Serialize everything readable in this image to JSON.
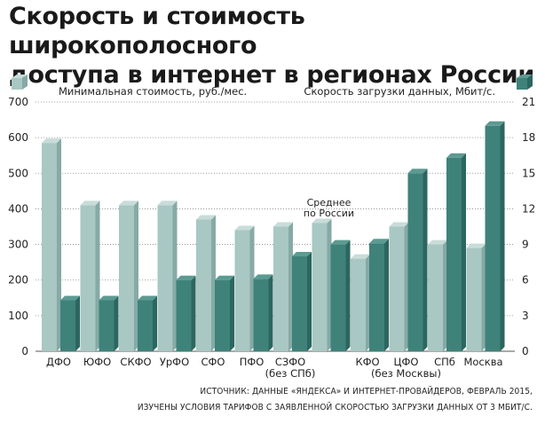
{
  "title_line1": "Скорость и стоимость широкополосного",
  "title_line2": "доступа в интернет в регионах России",
  "colors": {
    "cost": "#a9c7c3",
    "cost_side": "#86aaa5",
    "cost_top": "#c8dcd9",
    "speed": "#3f827a",
    "speed_side": "#2c6660",
    "speed_top": "#5c9a92",
    "axis_text": "#222222"
  },
  "chart_data": {
    "type": "bar",
    "left_axis": {
      "label": "Минимальная стоимость, руб./мес.",
      "ticks": [
        "0",
        "100",
        "200",
        "300",
        "400",
        "500",
        "600",
        "700"
      ],
      "range": [
        0,
        700
      ]
    },
    "right_axis": {
      "label": "Скорость загрузки данных, Мбит/с.",
      "ticks": [
        "0",
        "3",
        "6",
        "9",
        "12",
        "15",
        "18",
        "21"
      ],
      "range": [
        0,
        21
      ]
    },
    "categories": [
      "ДФО",
      "ЮФО",
      "СКФО",
      "УрФО",
      "СФО",
      "ПФО",
      "СЗФО\n(без СПб)",
      "Среднее\nпо России",
      "КФО",
      "ЦФО\n(без Москвы)",
      "СПб",
      "Москва"
    ],
    "x_labels": [
      "ДФО",
      "ЮФО",
      "СКФО",
      "УрФО",
      "СФО",
      "ПФО",
      "СЗФО\n(без СПб)",
      "",
      "КФО",
      "ЦФО\n(без Москвы)",
      "СПб",
      "Москва"
    ],
    "annotation": "Среднее\nпо России",
    "series": [
      {
        "name": "Минимальная стоимость, руб./мес.",
        "axis": "left",
        "values": [
          585,
          410,
          410,
          410,
          370,
          340,
          350,
          360,
          260,
          350,
          300,
          290
        ]
      },
      {
        "name": "Скорость загрузки данных, Мбит/с.",
        "axis": "right",
        "values": [
          4.3,
          4.3,
          4.3,
          6.0,
          6.0,
          6.1,
          8.0,
          9.0,
          9.1,
          15.0,
          16.3,
          19.0
        ]
      }
    ],
    "grid": true,
    "legend": "top"
  },
  "source_line1": "ИСТОЧНИК: ДАННЫЕ «ЯНДЕКСА» И ИНТЕРНЕТ-ПРОВАЙДЕРОВ, ФЕВРАЛЬ 2015,",
  "source_line2": "ИЗУЧЕНЫ УСЛОВИЯ ТАРИФОВ С ЗАЯВЛЕННОЙ СКОРОСТЬЮ ЗАГРУЗКИ ДАННЫХ ОТ 3 МБИТ/С."
}
